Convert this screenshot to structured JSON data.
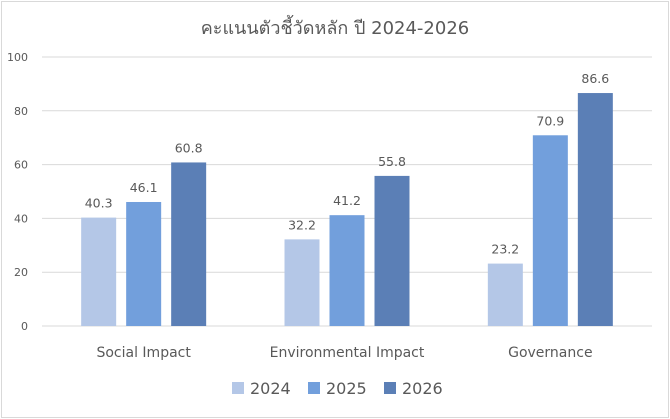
{
  "chart_data": {
    "type": "bar",
    "title": "คะแนนตัวชี้วัดหลัก ปี 2024-2026",
    "categories": [
      "Social Impact",
      "Environmental Impact",
      "Governance"
    ],
    "series": [
      {
        "name": "2024",
        "color": "#b4c7e7",
        "values": [
          40.3,
          32.2,
          23.2
        ]
      },
      {
        "name": "2025",
        "color": "#729fdc",
        "values": [
          46.1,
          41.2,
          70.9
        ]
      },
      {
        "name": "2026",
        "color": "#5b7fb6",
        "values": [
          60.8,
          55.8,
          86.6
        ]
      }
    ],
    "ylim": [
      0,
      100
    ],
    "yticks": [
      "0",
      "20",
      "40",
      "60",
      "80",
      "100"
    ],
    "xlabel": "",
    "ylabel": "",
    "grid": true,
    "legend": "bottom"
  }
}
